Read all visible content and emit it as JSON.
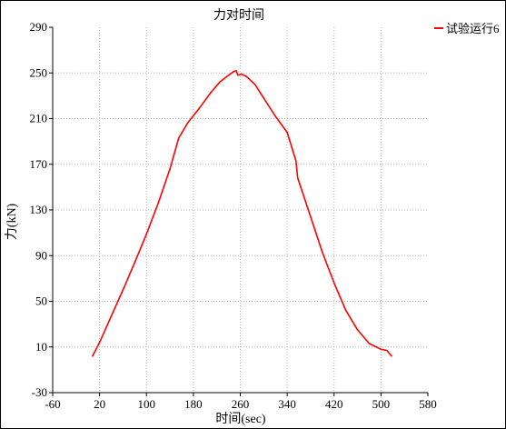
{
  "chart_data": {
    "type": "line",
    "title": "力对时间",
    "xlabel": "时间(sec)",
    "ylabel": "力(kN)",
    "xlim": [
      -60,
      580
    ],
    "ylim": [
      -30,
      290
    ],
    "x_ticks": [
      -60,
      20,
      100,
      180,
      260,
      340,
      420,
      500,
      580
    ],
    "y_ticks": [
      -30,
      10,
      50,
      90,
      130,
      170,
      210,
      250,
      290
    ],
    "grid": true,
    "legend_position": "top-right",
    "series": [
      {
        "name": "试验运行6",
        "color": "#ff0000",
        "x": [
          8,
          20,
          40,
          60,
          80,
          100,
          120,
          140,
          155,
          170,
          190,
          210,
          225,
          240,
          248,
          253,
          256,
          262,
          270,
          285,
          300,
          320,
          340,
          355,
          358,
          380,
          400,
          420,
          440,
          460,
          480,
          500,
          510,
          518
        ],
        "y": [
          2,
          14,
          37,
          60,
          84,
          109,
          136,
          166,
          193,
          206,
          219,
          233,
          242,
          248,
          251,
          252,
          248,
          249,
          247,
          240,
          228,
          212,
          198,
          173,
          158,
          124,
          93,
          66,
          42,
          25,
          13,
          8,
          7,
          2
        ]
      }
    ]
  }
}
